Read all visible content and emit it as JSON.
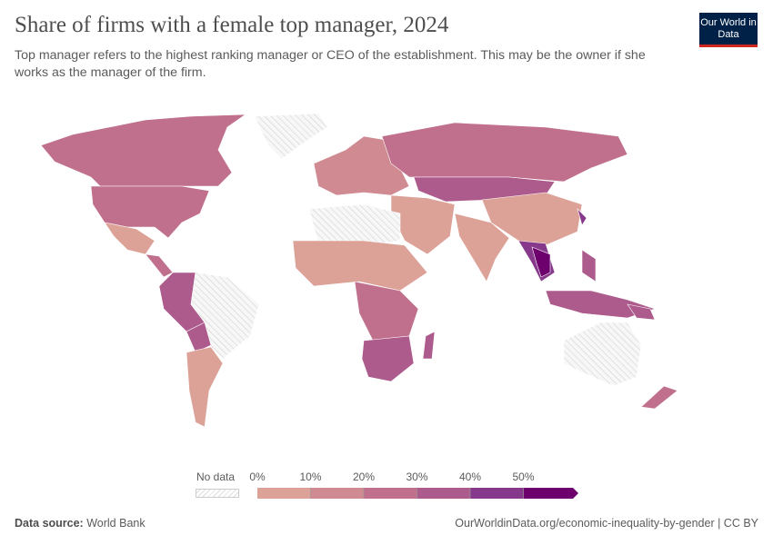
{
  "header": {
    "title": "Share of firms with a female top manager, 2024",
    "subtitle": "Top manager refers to the highest ranking manager or CEO of the establishment. This may be the owner if she works as the manager of the firm.",
    "logo_text": "Our World in Data"
  },
  "legend": {
    "no_data_label": "No data",
    "ticks": [
      "0%",
      "10%",
      "20%",
      "30%",
      "40%",
      "50%"
    ],
    "bins": [
      {
        "range": "0-10%",
        "color": "#dca197"
      },
      {
        "range": "10-20%",
        "color": "#cf8a92"
      },
      {
        "range": "20-30%",
        "color": "#c0708d"
      },
      {
        "range": "30-40%",
        "color": "#ad5a8c"
      },
      {
        "range": "40-50%",
        "color": "#86398a"
      },
      {
        "range": ">50%",
        "color": "#6e006e"
      }
    ],
    "no_data_color": "#eeeeee"
  },
  "footer": {
    "source_label": "Data source:",
    "source": "World Bank",
    "link": "OurWorldinData.org/economic-inequality-by-gender | CC BY"
  }
}
